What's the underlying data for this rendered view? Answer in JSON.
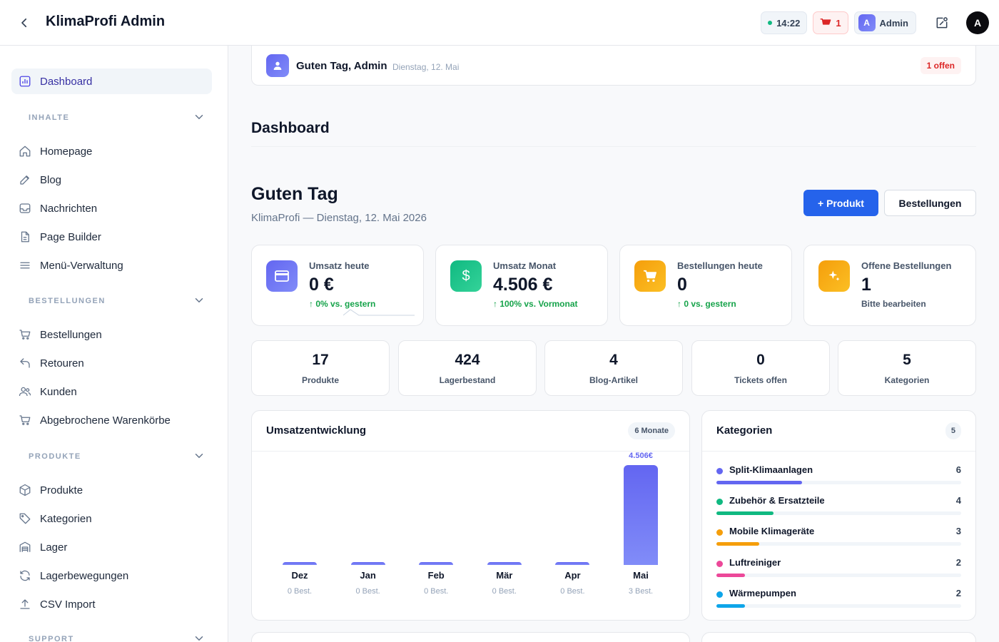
{
  "header": {
    "title": "KlimaProfi Admin",
    "time": "14:22",
    "cart_count": "1",
    "admin_initial": "A",
    "admin_label": "Admin",
    "avatar_initial": "A"
  },
  "sidebar": {
    "items_top": [
      {
        "label": "Dashboard",
        "icon": "chart-icon"
      }
    ],
    "sections": [
      {
        "label": "INHALTE",
        "items": [
          "Homepage",
          "Blog",
          "Nachrichten",
          "Page Builder",
          "Menü-Verwaltung"
        ]
      },
      {
        "label": "BESTELLUNGEN",
        "items": [
          "Bestellungen",
          "Retouren",
          "Kunden",
          "Abgebrochene Warenkörbe"
        ]
      },
      {
        "label": "PRODUKTE",
        "items": [
          "Produkte",
          "Kategorien",
          "Lager",
          "Lagerbewegungen",
          "CSV Import"
        ]
      },
      {
        "label": "SUPPORT",
        "items": []
      }
    ]
  },
  "greeting_bar": {
    "text": "Guten Tag, Admin",
    "date": "Dienstag, 12. Mai",
    "open_badge": "1 offen"
  },
  "page": {
    "title": "Dashboard",
    "hello": "Guten Tag",
    "subtitle": "KlimaProfi — Dienstag, 12. Mai 2026",
    "btn_product": "+ Produkt",
    "btn_orders": "Bestellungen"
  },
  "kpis": [
    {
      "label": "Umsatz heute",
      "value": "0 €",
      "sub": "↑ 0% vs. gestern",
      "color": "#6366f1",
      "icon": "card-icon"
    },
    {
      "label": "Umsatz Monat",
      "value": "4.506 €",
      "sub": "↑ 100% vs. Vormonat",
      "color": "#10b981",
      "icon": "dollar-icon"
    },
    {
      "label": "Bestellungen heute",
      "value": "0",
      "sub": "↑ 0 vs. gestern",
      "color": "#f59e0b",
      "icon": "cart-icon"
    },
    {
      "label": "Offene Bestellungen",
      "value": "1",
      "sub": "Bitte bearbeiten",
      "color": "#f59e0b",
      "icon": "sparkle-icon"
    }
  ],
  "stats": [
    {
      "value": "17",
      "label": "Produkte"
    },
    {
      "value": "424",
      "label": "Lagerbestand"
    },
    {
      "value": "4",
      "label": "Blog-Artikel"
    },
    {
      "value": "0",
      "label": "Tickets offen"
    },
    {
      "value": "5",
      "label": "Kategorien"
    }
  ],
  "revenue_card": {
    "title": "Umsatzentwicklung",
    "badge": "6 Monate"
  },
  "chart_data": {
    "type": "bar",
    "categories": [
      "Dez",
      "Jan",
      "Feb",
      "Mär",
      "Apr",
      "Mai"
    ],
    "values": [
      0,
      0,
      0,
      0,
      0,
      4506
    ],
    "orders": [
      "0 Best.",
      "0 Best.",
      "0 Best.",
      "0 Best.",
      "0 Best.",
      "3 Best."
    ],
    "top_label": "4.506€",
    "color": "#6366f1"
  },
  "categories_card": {
    "title": "Kategorien",
    "badge": "5",
    "max": 6,
    "items": [
      {
        "name": "Split-Klimaanlagen",
        "count": 6,
        "color": "#6366f1"
      },
      {
        "name": "Zubehör & Ersatzteile",
        "count": 4,
        "color": "#10b981"
      },
      {
        "name": "Mobile Klimageräte",
        "count": 3,
        "color": "#f59e0b"
      },
      {
        "name": "Luftreiniger",
        "count": 2,
        "color": "#ec4899"
      },
      {
        "name": "Wärmepumpen",
        "count": 2,
        "color": "#0ea5e9"
      }
    ]
  }
}
